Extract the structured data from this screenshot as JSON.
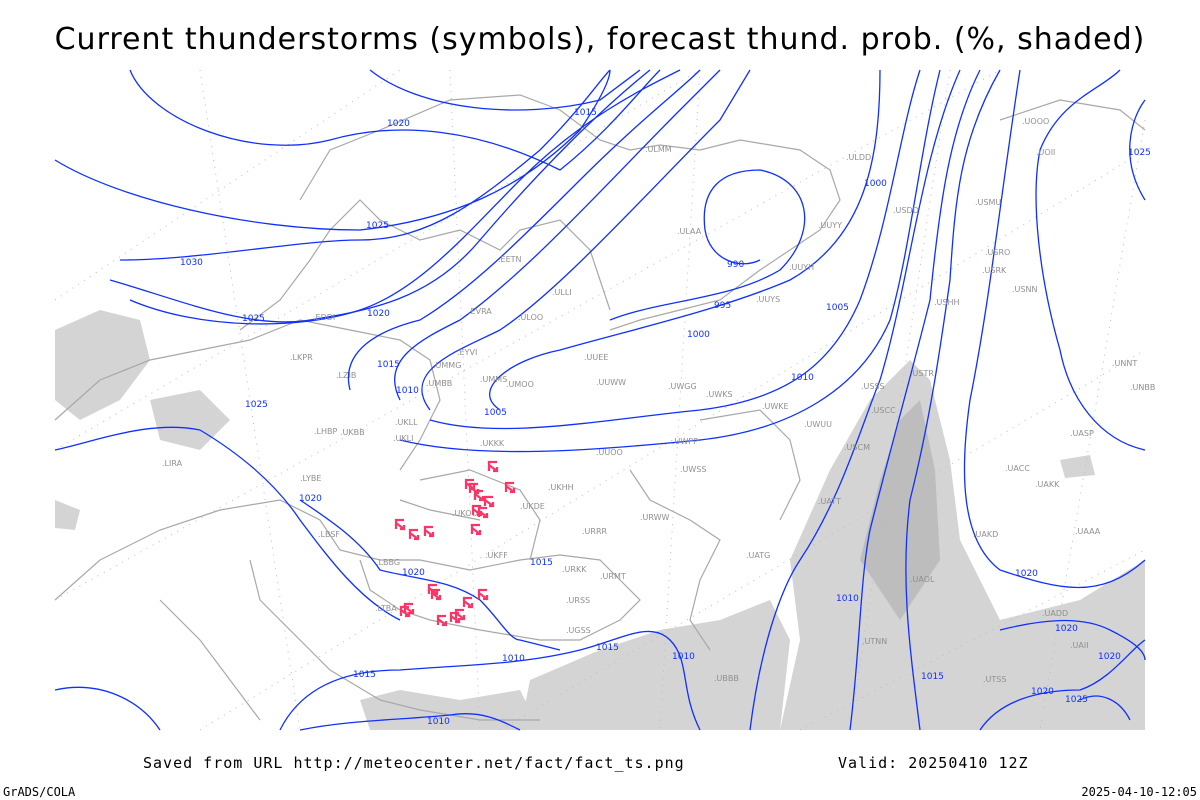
{
  "title": "Current thunderstorms (symbols), forecast thund. prob. (%, shaded)",
  "footer": {
    "saved": "Saved from URL http://meteocenter.net/fact/fact_ts.png",
    "valid": "Valid: 20250410 12Z",
    "software": "GrADS/COLA",
    "timestamp": "2025-04-10-12:05"
  },
  "colors": {
    "isobar": "#1030ff",
    "coastline": "#a8a8a8",
    "thunderstorm": "#ff3366",
    "probability_shade": "#d4d4d4"
  },
  "isobar_labels": [
    "1015",
    "1020",
    "1025",
    "1030",
    "1025",
    "1020",
    "1015",
    "1010",
    "1005",
    "1000",
    "995",
    "990",
    "1000",
    "1005",
    "1010",
    "1025",
    "1020",
    "1020",
    "1015",
    "1015",
    "1010",
    "1010",
    "1015",
    "1010",
    "1010",
    "1020",
    "1015",
    "1020",
    "1020",
    "1025",
    "1020",
    "1025"
  ],
  "stations": [
    "ULMM",
    "ULLI",
    "ULAA",
    "ULOO",
    "EETN",
    "EVRA",
    "EYVI",
    "UMMG",
    "UMMS",
    "UMOO",
    "UMBB",
    "UKKK",
    "UKLL",
    "UKLI",
    "UKBB",
    "UKHH",
    "UKOO",
    "UKDE",
    "UKFF",
    "URRR",
    "URMT",
    "URWW",
    "UUEE",
    "UUOO",
    "UUWW",
    "UWGG",
    "UWPP",
    "UWSS",
    "UWKS",
    "UWKE",
    "UWUU",
    "USSS",
    "USCC",
    "USCM",
    "USTR",
    "USHH",
    "USDD",
    "ULDD",
    "UUYY",
    "UUYH",
    "UUYS",
    "UATT",
    "UAKK",
    "UACC",
    "UAAA",
    "UATG",
    "UAOL",
    "UTNN",
    "UTSS",
    "UGSS",
    "UBBB",
    "LIRA",
    "LHBP",
    "LKPR",
    "LZIB",
    "LYBE",
    "LBSF",
    "LBBG",
    "LTBA",
    "EDDI",
    "URKK",
    "URSS",
    "UOOO",
    "UOII",
    "USMU",
    "USRO",
    "USRK",
    "USNN",
    "UNNT",
    "UNBB",
    "UASP",
    "UAKD",
    "UADD",
    "UAII"
  ],
  "map_symbols": {
    "thunderstorm_icon": "thunderstorm-symbol",
    "thunderstorm_count": 21
  }
}
